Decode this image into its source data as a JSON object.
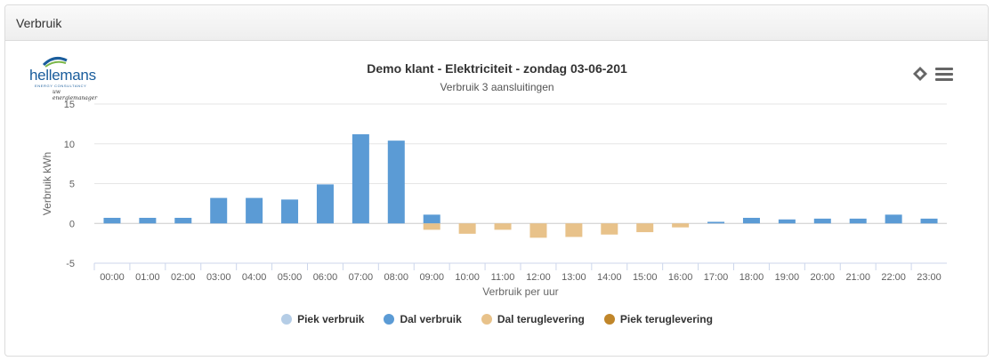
{
  "panel": {
    "title": "Verbruik"
  },
  "logo": {
    "name": "hellemans",
    "tagline": "ENERGY CONSULTANCY",
    "script": "uw energiemanager"
  },
  "colors": {
    "piek_verbruik": "#b5cde6",
    "dal_verbruik": "#5b9bd5",
    "dal_teruglevering": "#e8c28a",
    "piek_teruglevering": "#c0862a"
  },
  "icons": {
    "export": "diamond-icon",
    "menu": "hamburger-menu-icon"
  },
  "chart_data": {
    "type": "bar",
    "title": "Demo klant - Elektriciteit - zondag 03-06-201",
    "subtitle": "Verbruik 3 aansluitingen",
    "xlabel": "Verbruik per uur",
    "ylabel": "Verbruik kWh",
    "ylim": [
      -5,
      15
    ],
    "yticks": [
      15,
      10,
      5,
      0,
      -5
    ],
    "grid": true,
    "legend_position": "bottom",
    "categories": [
      "00:00",
      "01:00",
      "02:00",
      "03:00",
      "04:00",
      "05:00",
      "06:00",
      "07:00",
      "08:00",
      "09:00",
      "10:00",
      "11:00",
      "12:00",
      "13:00",
      "14:00",
      "15:00",
      "16:00",
      "17:00",
      "18:00",
      "19:00",
      "20:00",
      "21:00",
      "22:00",
      "23:00"
    ],
    "series": [
      {
        "name": "Piek verbruik",
        "color": "#b5cde6",
        "values": [
          0,
          0,
          0,
          0,
          0,
          0,
          0,
          0,
          0,
          0,
          0,
          0,
          0,
          0,
          0,
          0,
          0,
          0,
          0,
          0,
          0,
          0,
          0,
          0
        ]
      },
      {
        "name": "Dal verbruik",
        "color": "#5b9bd5",
        "values": [
          0.7,
          0.7,
          0.7,
          3.2,
          3.2,
          3.0,
          4.9,
          11.2,
          10.4,
          1.1,
          0,
          0,
          0,
          0,
          0,
          0,
          0,
          0.2,
          0.7,
          0.5,
          0.6,
          0.6,
          1.1,
          0.6
        ]
      },
      {
        "name": "Dal teruglevering",
        "color": "#e8c28a",
        "values": [
          0,
          0,
          0,
          0,
          0,
          0,
          0,
          0,
          0,
          -0.8,
          -1.3,
          -0.8,
          -1.8,
          -1.7,
          -1.4,
          -1.1,
          -0.5,
          0,
          0,
          0,
          0,
          0,
          0,
          0
        ]
      },
      {
        "name": "Piek teruglevering",
        "color": "#c0862a",
        "values": [
          0,
          0,
          0,
          0,
          0,
          0,
          0,
          0,
          0,
          0,
          0,
          0,
          0,
          0,
          0,
          0,
          0,
          0,
          0,
          0,
          0,
          0,
          0,
          0
        ]
      }
    ]
  }
}
